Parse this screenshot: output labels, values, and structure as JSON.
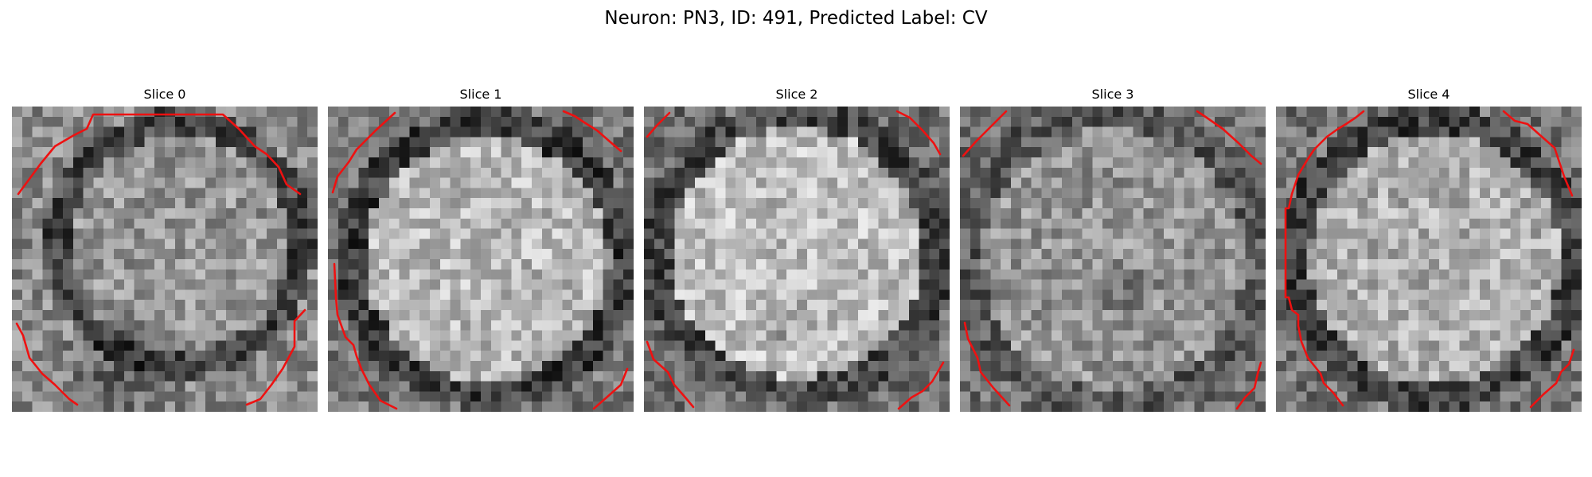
{
  "title": "Neuron: PN3, ID: 491, Predicted Label: CV",
  "panels": [
    {
      "label": "Slice 0"
    },
    {
      "label": "Slice 1"
    },
    {
      "label": "Slice 2"
    },
    {
      "label": "Slice 3"
    },
    {
      "label": "Slice 4"
    }
  ],
  "colors": {
    "background": "#ffffff",
    "contour": "#ee1111",
    "colormap": "grayscale"
  }
}
